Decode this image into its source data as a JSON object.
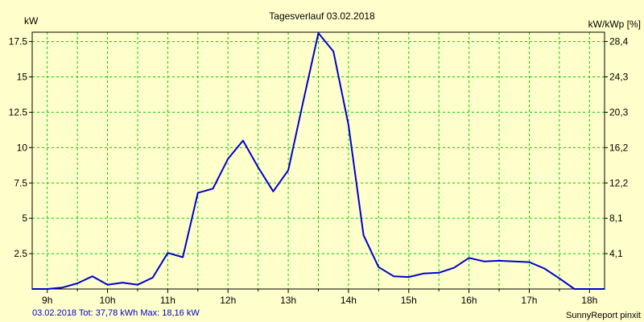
{
  "chart_data": {
    "type": "line",
    "title": "Tagesverlauf 03.02.2018",
    "ylabel_left": "kW",
    "ylabel_right": "kW/kWp [%]",
    "x_tick_labels": [
      "9h",
      "10h",
      "11h",
      "12h",
      "13h",
      "14h",
      "15h",
      "16h",
      "17h",
      "18h"
    ],
    "y_left_ticks": [
      "2.5",
      "5",
      "7.5",
      "10",
      "12.5",
      "15",
      "17.5"
    ],
    "y_right_ticks": [
      "4,1",
      "8,1",
      "12,2",
      "16,2",
      "20,3",
      "24,3",
      "28,4"
    ],
    "x_unit": "hour",
    "xlim": [
      8.75,
      18.25
    ],
    "ylim": [
      0,
      18.16
    ],
    "grid": true,
    "colors": {
      "line": "#0000cc",
      "grid": "#00cc00",
      "background": "#ffffcc",
      "footer_text": "#0000cc"
    },
    "series": [
      {
        "x": [
          8.75,
          9.0,
          9.25,
          9.5,
          9.75,
          10.0,
          10.25,
          10.5,
          10.75,
          11.0,
          11.25,
          11.5,
          11.75,
          12.0,
          12.25,
          12.5,
          12.75,
          13.0,
          13.25,
          13.5,
          13.75,
          14.0,
          14.25,
          14.5,
          14.75,
          15.0,
          15.25,
          15.5,
          15.75,
          16.0,
          16.25,
          16.5,
          16.75,
          17.0,
          17.25,
          17.5,
          17.75,
          18.0,
          18.25
        ],
        "values": [
          0.0,
          0.0,
          0.1,
          0.4,
          0.9,
          0.3,
          0.45,
          0.3,
          0.8,
          2.55,
          2.25,
          6.8,
          7.1,
          9.2,
          10.5,
          8.6,
          6.9,
          8.4,
          13.3,
          18.1,
          16.8,
          11.6,
          3.8,
          1.55,
          0.9,
          0.85,
          1.1,
          1.15,
          1.5,
          2.2,
          1.95,
          2.0,
          1.95,
          1.9,
          1.45,
          0.75,
          0.0,
          0.0,
          0.0
        ]
      }
    ]
  },
  "footer": {
    "summary": "03.02.2018 Tot: 37,78 kWh Max: 18,16 kW",
    "source": "SunnyReport pinxit"
  }
}
